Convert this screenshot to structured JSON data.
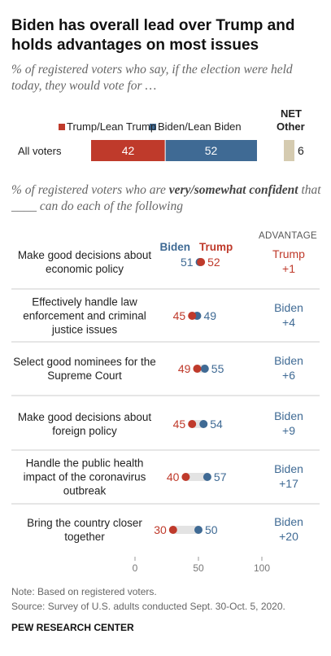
{
  "chart_data": [
    {
      "type": "stacked-bar",
      "title": "Biden has overall lead over Trump and holds advantages on most issues",
      "subtitle": "% of registered voters who say, if the election were held today, they would vote for …",
      "categories": [
        "All voters"
      ],
      "series": [
        {
          "name": "Trump/Lean Trump",
          "color": "#bf3a2b",
          "values": [
            42
          ]
        },
        {
          "name": "Biden/Lean Biden",
          "color": "#3f6a94",
          "values": [
            52
          ]
        }
      ],
      "other": {
        "net_label": "NET",
        "name": "Other",
        "color": "#d5cbb0",
        "values": [
          6
        ]
      }
    },
    {
      "type": "dot",
      "subtitle_parts": [
        "% of registered voters who are ",
        "very/somewhat confident",
        " that ____ can do each of the following"
      ],
      "categories": [
        "Make good decisions about economic policy",
        "Effectively handle law enforcement and criminal justice issues",
        "Select good nominees for the Supreme Court",
        "Make good decisions about foreign policy",
        "Handle the public health impact of the coronavirus outbreak",
        "Bring the country closer together"
      ],
      "series": [
        {
          "name": "Biden",
          "color": "#3f6a94",
          "values": [
            51,
            49,
            55,
            54,
            57,
            50
          ]
        },
        {
          "name": "Trump",
          "color": "#bf3a2b",
          "values": [
            52,
            45,
            49,
            45,
            40,
            30
          ]
        }
      ],
      "advantage_title": "ADVANTAGE",
      "advantage": [
        {
          "winner": "Trump",
          "margin": 1,
          "margin_label": "+1"
        },
        {
          "winner": "Biden",
          "margin": 4,
          "margin_label": "+4"
        },
        {
          "winner": "Biden",
          "margin": 6,
          "margin_label": "+6"
        },
        {
          "winner": "Biden",
          "margin": 9,
          "margin_label": "+9"
        },
        {
          "winner": "Biden",
          "margin": 17,
          "margin_label": "+17"
        },
        {
          "winner": "Biden",
          "margin": 20,
          "margin_label": "+20"
        }
      ],
      "xlim": [
        0,
        100
      ],
      "xticks": [
        0,
        50,
        100
      ]
    }
  ],
  "note": "Note: Based on registered voters.",
  "source": "Source: Survey of U.S. adults conducted Sept. 30-Oct. 5, 2020.",
  "footer": "PEW RESEARCH CENTER"
}
